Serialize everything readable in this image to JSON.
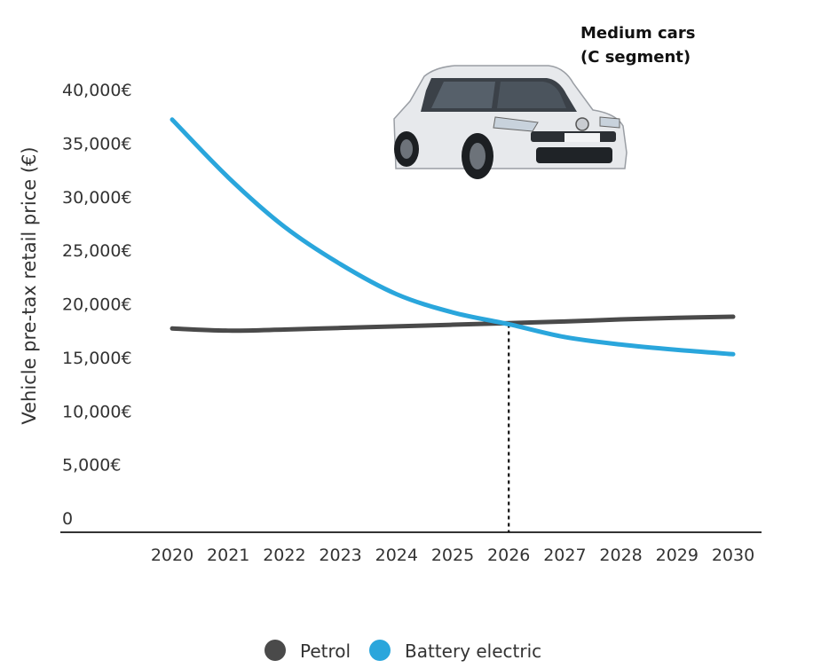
{
  "chart_data": {
    "type": "line",
    "title": "Medium cars (C segment)",
    "title_lines": [
      "Medium cars",
      "(C segment)"
    ],
    "xlabel": "",
    "ylabel": "Vehicle pre-tax retail price (€)",
    "x": [
      2020,
      2021,
      2022,
      2023,
      2024,
      2025,
      2026,
      2027,
      2028,
      2029,
      2030
    ],
    "ylim": [
      0,
      40000
    ],
    "yticks": [
      0,
      5000,
      10000,
      15000,
      20000,
      25000,
      30000,
      35000,
      40000
    ],
    "ytick_labels": [
      "0",
      "5,000€",
      "10,000€",
      "15,000€",
      "20,000€",
      "25,000€",
      "30,000€",
      "35,000€",
      "40,000€"
    ],
    "series": [
      {
        "name": "Petrol",
        "color": "#4a4a4a",
        "values": [
          17700,
          17500,
          17600,
          17750,
          17900,
          18050,
          18200,
          18350,
          18550,
          18700,
          18800
        ]
      },
      {
        "name": "Battery electric",
        "color": "#2aa6dc",
        "values": [
          37200,
          31800,
          27200,
          23700,
          20900,
          19200,
          18100,
          16900,
          16200,
          15700,
          15300
        ]
      }
    ],
    "crossover_year": 2026,
    "legend_position": "bottom-center",
    "grid": false
  },
  "image": {
    "description_icon": "car-photo-icon"
  }
}
